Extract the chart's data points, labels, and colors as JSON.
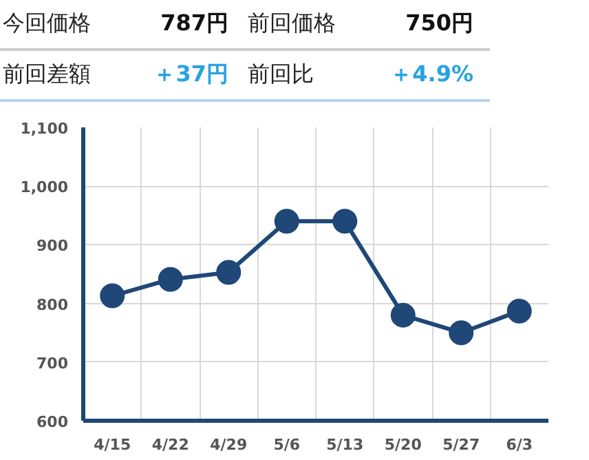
{
  "chart_data": {
    "type": "line",
    "annotations": [
      "今回価格",
      "787円",
      "前回価格",
      "750円",
      "前回差額",
      "＋37円",
      "前回比",
      "＋4.9%"
    ],
    "categories": [
      "4/15",
      "4/22",
      "4/29",
      "5/6",
      "5/13",
      "5/20",
      "5/27",
      "6/3"
    ],
    "series": [
      {
        "color": "#1f4778",
        "values": [
          813,
          841,
          853,
          940,
          940,
          780,
          750,
          787
        ]
      }
    ],
    "ylim": [
      600,
      1100
    ],
    "yticks": [
      600,
      700,
      800,
      900,
      {
        "value": 1000,
        "label": "1,000"
      },
      {
        "value": 1100,
        "label": "1,100"
      }
    ],
    "grid": true,
    "marker": "circle",
    "line_style": "solid"
  }
}
